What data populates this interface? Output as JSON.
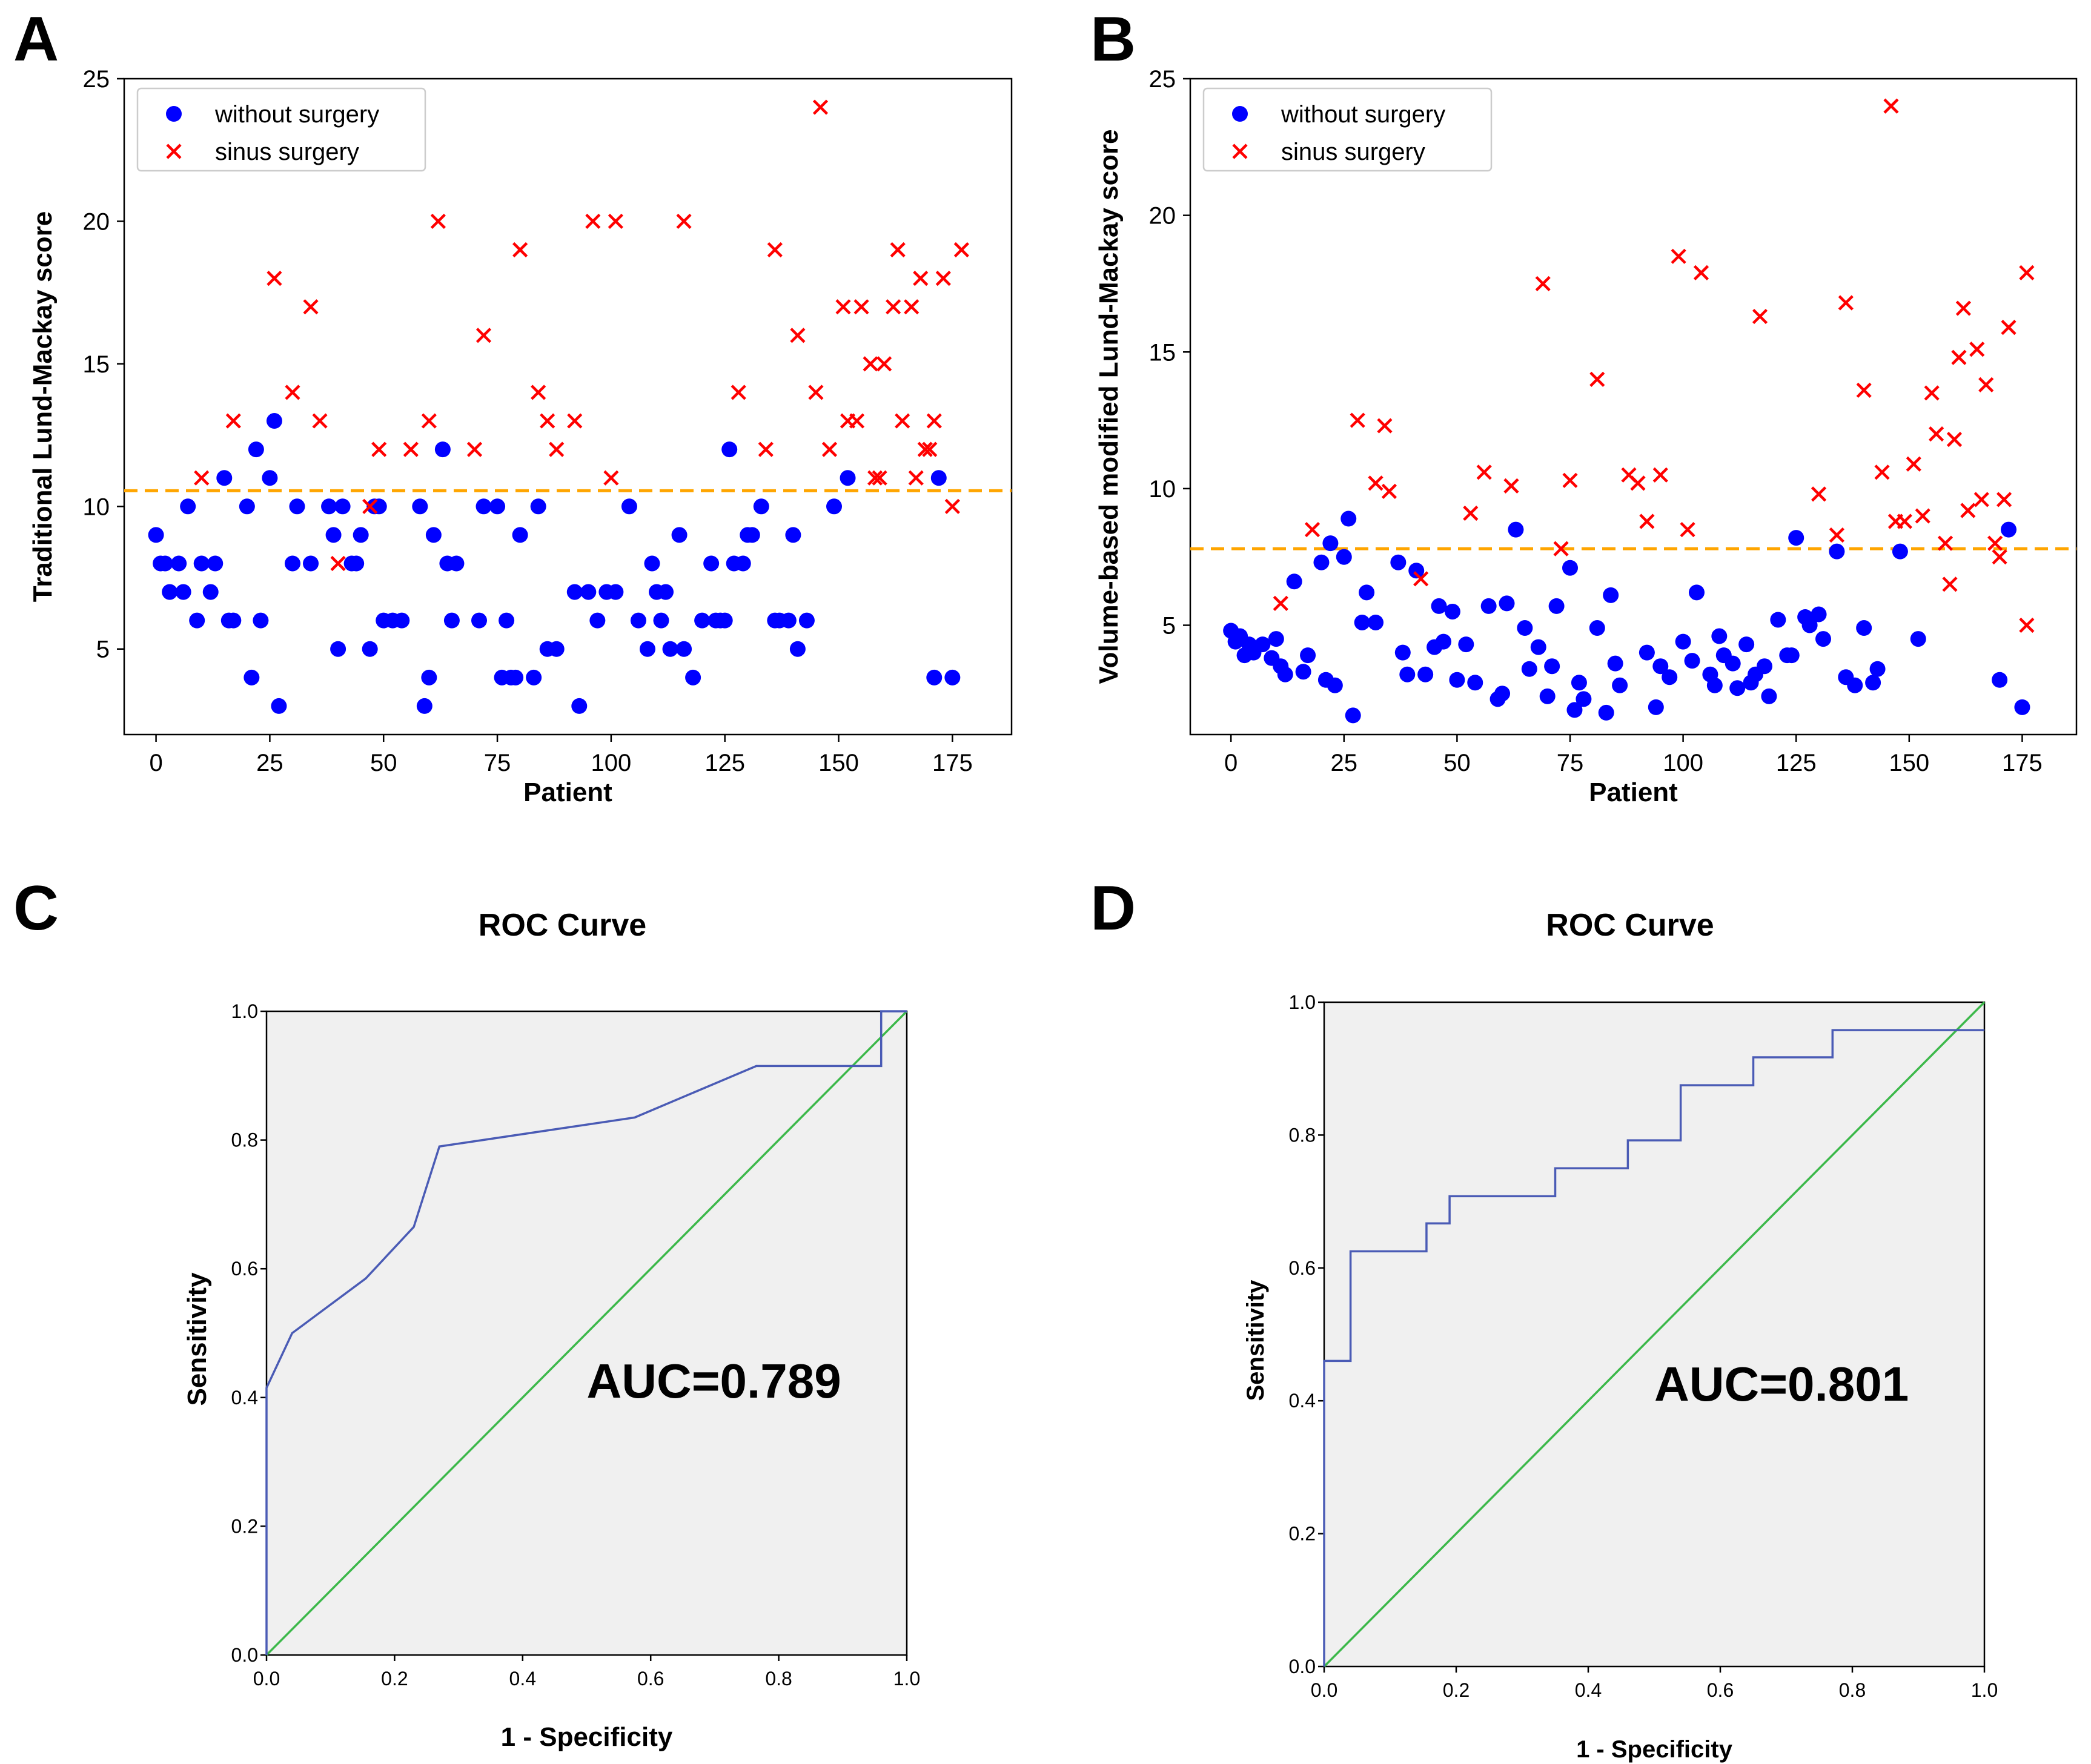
{
  "colors": {
    "no_surgery": "#0000ff",
    "surgery": "#ff0000",
    "threshold": "#ffa500",
    "roc_curve": "#4a5bb5",
    "diagonal": "#3cb84a",
    "roc_bg": "#f0f0f0"
  },
  "chart_data": [
    {
      "panel": "A",
      "type": "scatter",
      "xlabel": "Patient",
      "ylabel": "Traditional Lund-Mackay score",
      "xlim": [
        -7,
        188
      ],
      "ylim": [
        2,
        25
      ],
      "xticks": [
        0,
        25,
        50,
        75,
        100,
        125,
        150,
        175
      ],
      "yticks": [
        5,
        10,
        15,
        20,
        25
      ],
      "threshold": 10.55,
      "legend": {
        "position": "top-left",
        "items": [
          "without surgery",
          "sinus surgery"
        ]
      },
      "series": [
        {
          "name": "without surgery",
          "marker": "circle",
          "x": [
            0,
            1,
            2,
            3,
            4,
            5,
            6,
            7,
            8,
            9,
            10,
            11,
            12,
            13,
            14,
            16,
            17,
            19,
            20,
            21,
            22,
            23,
            25,
            27,
            29,
            30,
            31,
            33,
            36,
            38,
            39,
            40,
            41,
            42,
            43,
            44,
            45,
            46,
            47,
            48,
            49,
            51,
            52,
            53,
            54,
            55,
            56,
            57,
            58,
            59,
            60,
            61,
            62,
            64,
            65,
            66,
            68,
            70,
            73,
            74,
            75,
            76,
            77,
            78,
            79,
            80,
            81,
            82,
            83,
            84,
            85,
            86,
            87,
            88,
            89,
            90,
            92,
            93,
            94,
            96,
            97,
            98,
            99,
            100,
            101,
            102,
            103,
            104,
            105,
            106,
            107,
            108,
            109,
            110,
            111,
            112,
            113,
            114,
            115,
            116,
            118,
            119,
            121,
            122,
            123,
            124,
            126,
            127,
            128,
            129,
            130,
            131,
            132,
            133,
            134,
            135,
            137,
            138,
            139,
            141,
            142,
            143,
            144,
            145,
            147,
            149,
            150,
            151,
            153,
            155,
            157,
            158,
            160,
            162,
            163,
            164,
            165,
            166,
            167,
            168,
            170,
            171,
            172,
            173,
            174,
            175
          ],
          "y": [
            9,
            8,
            8,
            7,
            8,
            7,
            10,
            6,
            8,
            7,
            8,
            11,
            6,
            6,
            10,
            4,
            12,
            6,
            11,
            13,
            3,
            8,
            10,
            8,
            10,
            9,
            5,
            10,
            8,
            9,
            5,
            6,
            6,
            6,
            6,
            6,
            3,
            4,
            9,
            12,
            8,
            8,
            6,
            4,
            10,
            6,
            10,
            4,
            6,
            4,
            4,
            9,
            4,
            10,
            5,
            5,
            7,
            3,
            7,
            6,
            7,
            7,
            10,
            5,
            6,
            8,
            7,
            6,
            7,
            5,
            5,
            9,
            4,
            6,
            6,
            6,
            8,
            8,
            12,
            8,
            8,
            9,
            9,
            10,
            6,
            6,
            9,
            5,
            6,
            10,
            6,
            11,
            4,
            4,
            10,
            6,
            8,
            6,
            9,
            4,
            6,
            3,
            6,
            6,
            6,
            5,
            4,
            4,
            6,
            4,
            3,
            8,
            6,
            9,
            4,
            6,
            6,
            12,
            5,
            6,
            6,
            4,
            6,
            3,
            9,
            6,
            4,
            8,
            5,
            6,
            4,
            5,
            6,
            9,
            5,
            4,
            6,
            11,
            6,
            4,
            5,
            6,
            5,
            4,
            4,
            4
          ],
          "_note": "first-pass approximation retained only for count reference"
        }
      ]
    },
    {
      "panel": "B",
      "type": "scatter",
      "xlabel": "Patient",
      "ylabel": "Volume-based modified Lund-Mackay score",
      "xlim": [
        -9,
        187
      ],
      "ylim": [
        1,
        25
      ],
      "xticks": [
        0,
        25,
        50,
        75,
        100,
        125,
        150,
        175
      ],
      "yticks": [
        5,
        10,
        15,
        20,
        25
      ],
      "threshold": 7.8,
      "legend": {
        "position": "top-left",
        "items": [
          "without surgery",
          "sinus surgery"
        ]
      }
    },
    {
      "panel": "C",
      "type": "line",
      "title": "ROC Curve",
      "xlabel": "1 - Specificity",
      "ylabel": "Sensitivity",
      "xlim": [
        0,
        1
      ],
      "ylim": [
        0,
        1
      ],
      "ticks": [
        "0.0",
        "0.2",
        "0.4",
        "0.6",
        "0.8",
        "1.0"
      ],
      "annotation": "AUC=0.789",
      "curve": {
        "x": [
          0,
          0,
          0.04,
          0.155,
          0.23,
          0.27,
          0.575,
          0.765,
          0.96,
          0.96,
          1
        ],
        "y": [
          0,
          0.415,
          0.5,
          0.585,
          0.665,
          0.79,
          0.835,
          0.915,
          0.915,
          1,
          1
        ]
      },
      "diagonal": {
        "x": [
          0,
          1
        ],
        "y": [
          0,
          1
        ]
      }
    },
    {
      "panel": "D",
      "type": "line",
      "title": "ROC Curve",
      "xlabel": "1 - Specificity",
      "ylabel": "Sensitivity",
      "xlim": [
        0,
        1
      ],
      "ylim": [
        0,
        1
      ],
      "ticks": [
        "0.0",
        "0.2",
        "0.4",
        "0.6",
        "0.8",
        "1.0"
      ],
      "annotation": "AUC=0.801",
      "curve": {
        "x": [
          0,
          0,
          0.04,
          0.04,
          0.155,
          0.155,
          0.19,
          0.19,
          0.35,
          0.35,
          0.46,
          0.46,
          0.54,
          0.54,
          0.65,
          0.65,
          0.77,
          0.77,
          1
        ],
        "y": [
          0,
          0.46,
          0.46,
          0.625,
          0.625,
          0.667,
          0.667,
          0.708,
          0.708,
          0.75,
          0.75,
          0.792,
          0.792,
          0.875,
          0.875,
          0.917,
          0.917,
          0.958,
          0.958
        ]
      },
      "diagonal": {
        "x": [
          0,
          1
        ],
        "y": [
          0,
          1
        ]
      }
    }
  ]
}
